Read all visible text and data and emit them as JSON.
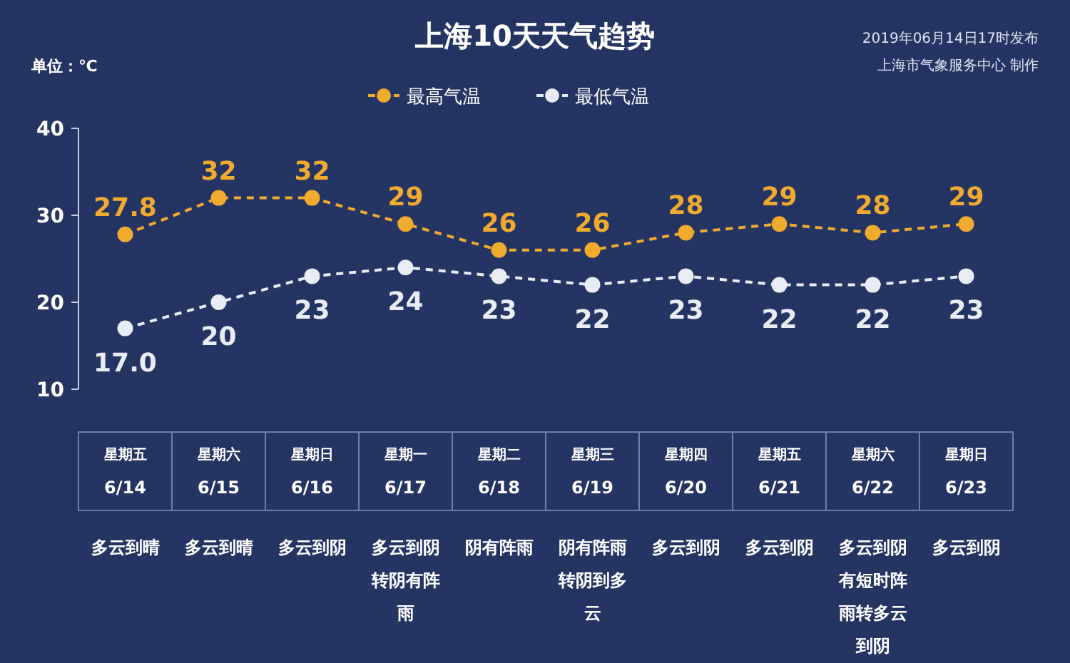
{
  "chart_data": {
    "type": "line",
    "title": "上海10天天气趋势",
    "ylabel": "单位：℃",
    "categories": [
      "星期五\n6/14",
      "星期六\n6/15",
      "星期日\n6/16",
      "星期一\n6/17",
      "星期二\n6/18",
      "星期三\n6/19",
      "星期四\n6/20",
      "星期五\n6/21",
      "星期六\n6/22",
      "星期日\n6/23"
    ],
    "series": [
      {
        "name": "最高气温",
        "color": "#f0aa2e",
        "values": [
          27.8,
          32,
          32,
          29,
          26,
          26,
          28,
          29,
          28,
          29
        ],
        "value_labels": [
          "27.8",
          "32",
          "32",
          "29",
          "26",
          "26",
          "28",
          "29",
          "28",
          "29"
        ]
      },
      {
        "name": "最低气温",
        "color": "#e8ecf5",
        "values": [
          17.0,
          20,
          23,
          24,
          23,
          22,
          23,
          22,
          22,
          23
        ],
        "value_labels": [
          "17.0",
          "20",
          "23",
          "24",
          "23",
          "22",
          "23",
          "22",
          "22",
          "23"
        ]
      }
    ],
    "ylim": [
      10,
      40
    ],
    "yticks": [
      10,
      20,
      30,
      40
    ],
    "grid": false,
    "legend": "top",
    "marker": "circle",
    "line_style": "dashed",
    "annotations": [
      "2019年06月14日17时发布",
      "上海市气象服务中心 制作",
      "多云到晴",
      "多云到晴",
      "多云到阴",
      "多云到阴转阴有阵雨",
      "阴有阵雨",
      "阴有阵雨转阴到多云",
      "多云到阴",
      "多云到阴",
      "多云到阴有短时阵雨转多云到阴",
      "多云到阴"
    ]
  }
}
